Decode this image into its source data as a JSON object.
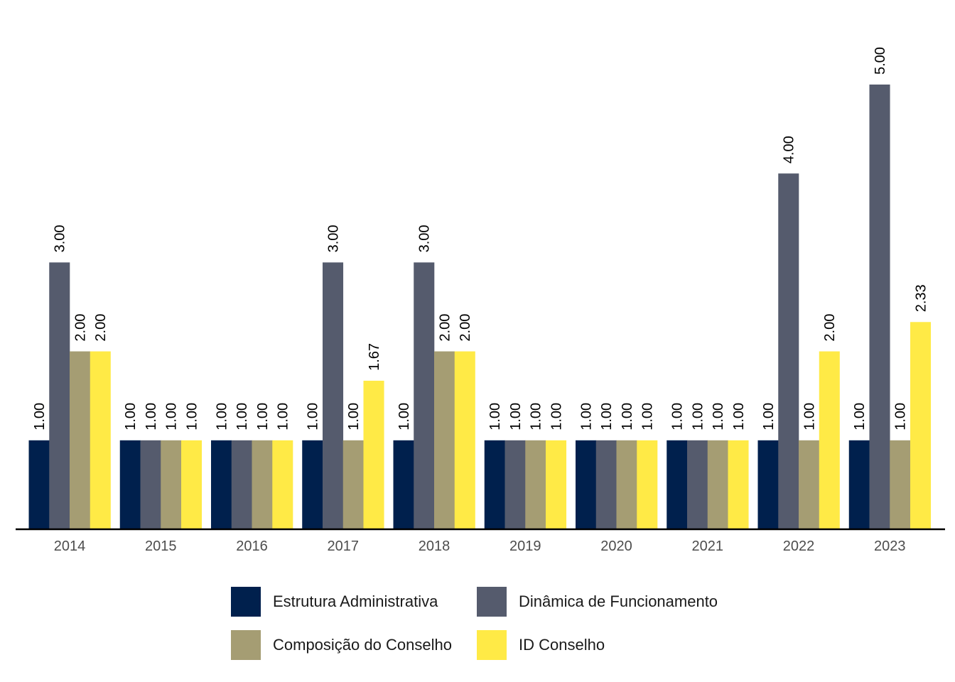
{
  "chart_data": {
    "type": "bar",
    "categories": [
      "2014",
      "2015",
      "2016",
      "2017",
      "2018",
      "2019",
      "2020",
      "2021",
      "2022",
      "2023"
    ],
    "series": [
      {
        "name": "Estrutura Administrativa",
        "color": "#00204D",
        "values": [
          1.0,
          1.0,
          1.0,
          1.0,
          1.0,
          1.0,
          1.0,
          1.0,
          1.0,
          1.0
        ],
        "labels": [
          "1.00",
          "1.00",
          "1.00",
          "1.00",
          "1.00",
          "1.00",
          "1.00",
          "1.00",
          "1.00",
          "1.00"
        ]
      },
      {
        "name": "Dinâmica de Funcionamento",
        "color": "#555B6D",
        "values": [
          3.0,
          1.0,
          1.0,
          3.0,
          3.0,
          1.0,
          1.0,
          1.0,
          4.0,
          5.0
        ],
        "labels": [
          "3.00",
          "1.00",
          "1.00",
          "3.00",
          "3.00",
          "1.00",
          "1.00",
          "1.00",
          "4.00",
          "5.00"
        ]
      },
      {
        "name": "Composição do Conselho",
        "color": "#A59D73",
        "values": [
          2.0,
          1.0,
          1.0,
          1.0,
          2.0,
          1.0,
          1.0,
          1.0,
          1.0,
          1.0
        ],
        "labels": [
          "2.00",
          "1.00",
          "1.00",
          "1.00",
          "2.00",
          "1.00",
          "1.00",
          "1.00",
          "1.00",
          "1.00"
        ]
      },
      {
        "name": "ID Conselho",
        "color": "#FFEA46",
        "values": [
          2.0,
          1.0,
          1.0,
          1.67,
          2.0,
          1.0,
          1.0,
          1.0,
          2.0,
          2.33
        ],
        "labels": [
          "2.00",
          "1.00",
          "1.00",
          "1.67",
          "2.00",
          "1.00",
          "1.00",
          "1.00",
          "2.00",
          "2.33"
        ]
      }
    ],
    "ylim": [
      0,
      5
    ],
    "grid": false,
    "legend_position": "bottom"
  }
}
